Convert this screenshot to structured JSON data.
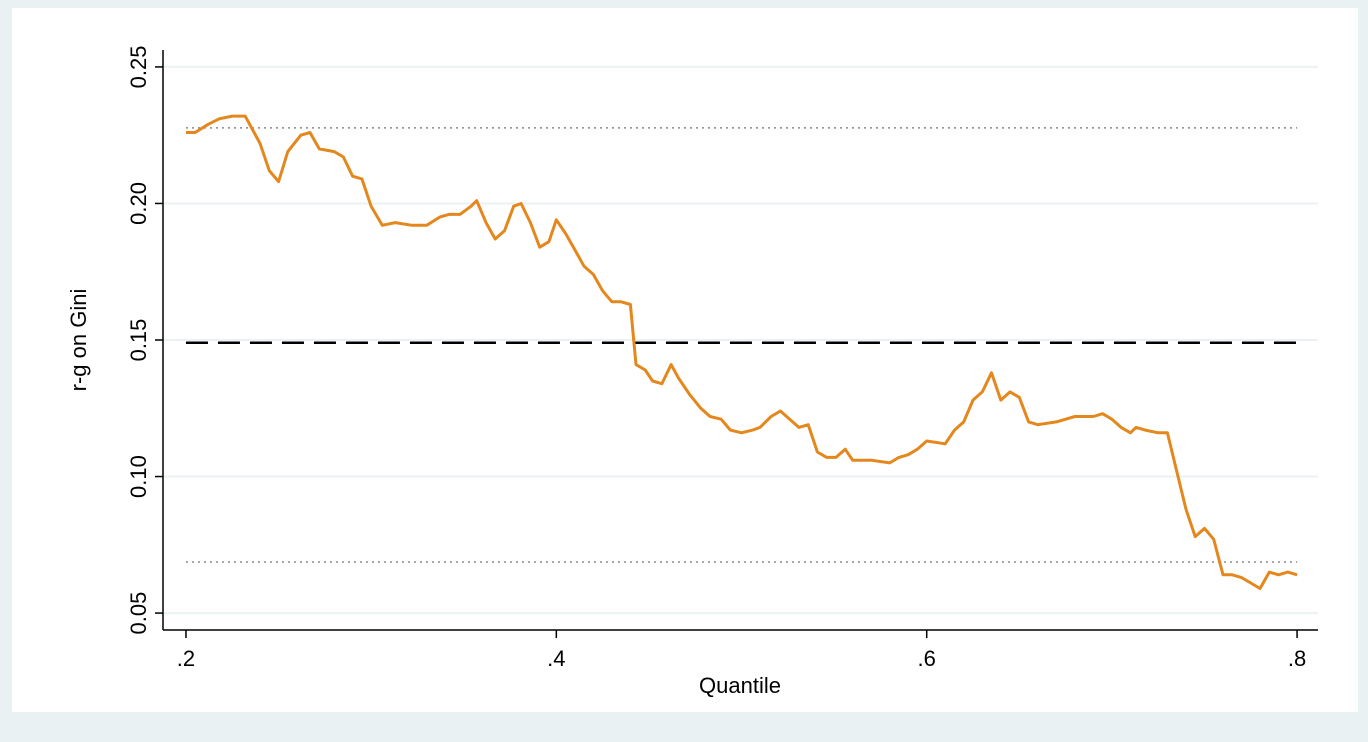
{
  "chart_data": {
    "type": "line",
    "x_label": "Quantile",
    "y_label": "r-g on Gini",
    "x": [
      0.2,
      0.205,
      0.212,
      0.218,
      0.225,
      0.232,
      0.24,
      0.245,
      0.25,
      0.255,
      0.262,
      0.267,
      0.272,
      0.28,
      0.285,
      0.29,
      0.295,
      0.3,
      0.306,
      0.313,
      0.322,
      0.33,
      0.337,
      0.342,
      0.348,
      0.354,
      0.357,
      0.362,
      0.367,
      0.372,
      0.377,
      0.381,
      0.386,
      0.391,
      0.396,
      0.4,
      0.405,
      0.41,
      0.415,
      0.42,
      0.425,
      0.43,
      0.435,
      0.44,
      0.443,
      0.448,
      0.452,
      0.457,
      0.462,
      0.466,
      0.472,
      0.478,
      0.483,
      0.489,
      0.494,
      0.5,
      0.506,
      0.51,
      0.516,
      0.521,
      0.526,
      0.531,
      0.536,
      0.541,
      0.546,
      0.551,
      0.556,
      0.56,
      0.57,
      0.58,
      0.585,
      0.59,
      0.595,
      0.6,
      0.61,
      0.615,
      0.62,
      0.625,
      0.63,
      0.635,
      0.64,
      0.645,
      0.65,
      0.655,
      0.66,
      0.67,
      0.68,
      0.69,
      0.695,
      0.7,
      0.705,
      0.71,
      0.713,
      0.718,
      0.725,
      0.73,
      0.735,
      0.74,
      0.745,
      0.75,
      0.755,
      0.76,
      0.765,
      0.77,
      0.775,
      0.78,
      0.785,
      0.79,
      0.795,
      0.8
    ],
    "values": [
      0.226,
      0.226,
      0.229,
      0.231,
      0.232,
      0.232,
      0.222,
      0.212,
      0.208,
      0.219,
      0.225,
      0.226,
      0.22,
      0.219,
      0.217,
      0.21,
      0.209,
      0.199,
      0.192,
      0.193,
      0.192,
      0.192,
      0.195,
      0.196,
      0.196,
      0.199,
      0.201,
      0.193,
      0.187,
      0.19,
      0.199,
      0.2,
      0.193,
      0.184,
      0.186,
      0.194,
      0.189,
      0.183,
      0.177,
      0.174,
      0.168,
      0.164,
      0.164,
      0.163,
      0.141,
      0.139,
      0.135,
      0.134,
      0.141,
      0.136,
      0.13,
      0.125,
      0.122,
      0.121,
      0.117,
      0.116,
      0.117,
      0.118,
      0.122,
      0.124,
      0.121,
      0.118,
      0.119,
      0.109,
      0.107,
      0.107,
      0.11,
      0.106,
      0.106,
      0.105,
      0.107,
      0.108,
      0.11,
      0.113,
      0.112,
      0.117,
      0.12,
      0.128,
      0.131,
      0.138,
      0.128,
      0.131,
      0.129,
      0.12,
      0.119,
      0.12,
      0.122,
      0.122,
      0.123,
      0.121,
      0.118,
      0.116,
      0.118,
      0.117,
      0.116,
      0.116,
      0.102,
      0.088,
      0.078,
      0.081,
      0.077,
      0.064,
      0.064,
      0.063,
      0.061,
      0.059,
      0.065,
      0.064,
      0.065,
      0.064
    ],
    "color": "#e4871c",
    "xlim": [
      0.1876,
      0.8113
    ],
    "ylim": [
      0.0438,
      0.2562
    ],
    "xticks": [
      {
        "value": 0.2,
        "label": ".2"
      },
      {
        "value": 0.4,
        "label": ".4"
      },
      {
        "value": 0.6,
        "label": ".6"
      },
      {
        "value": 0.8,
        "label": ".8"
      }
    ],
    "yticks": [
      0.05,
      {
        "value": 0.1,
        "label": "0.10"
      },
      0.15,
      {
        "value": 0.2,
        "label": "0.20"
      },
      0.25
    ],
    "grid": true,
    "reference_lines": [
      {
        "value": 0.149,
        "style": "dashed",
        "color": "#000000"
      },
      {
        "value": 0.2277,
        "style": "dotted",
        "color": "#888888"
      },
      {
        "value": 0.0687,
        "style": "dotted",
        "color": "#888888"
      }
    ]
  }
}
